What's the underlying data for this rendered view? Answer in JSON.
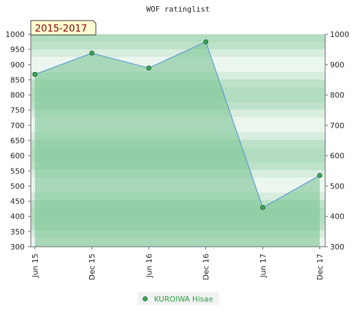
{
  "chart_data": {
    "type": "area",
    "title": "WOF ratinglist",
    "badge": "2015-2017",
    "categories": [
      "Jun 15",
      "Dec 15",
      "Jun 16",
      "Dec 16",
      "Jun 17",
      "Dec 17"
    ],
    "series": [
      {
        "name": "KUROIWA Hisae",
        "values": [
          868,
          938,
          889,
          975,
          429,
          535
        ]
      }
    ],
    "ylim": [
      300,
      1000
    ],
    "yticks_left": [
      "300",
      "350",
      "400",
      "450",
      "500",
      "550",
      "600",
      "650",
      "700",
      "750",
      "800",
      "850",
      "900",
      "950",
      "1000"
    ],
    "yticks_right": [
      "300",
      "400",
      "500",
      "600",
      "700",
      "800",
      "900",
      "1000"
    ],
    "xlabel": "",
    "ylabel": "",
    "grid": true,
    "legend_position": "bottom-center",
    "colors": {
      "line": "#5b9bd5",
      "fill": "#7cc595",
      "marker": "#3aa65a",
      "band_dark": "#b3ddc0",
      "band_light": "#eef7f1",
      "badge_bg": "#fdfbd0",
      "badge_text": "#8b0000",
      "legend_text": "#2e9e4a"
    }
  }
}
